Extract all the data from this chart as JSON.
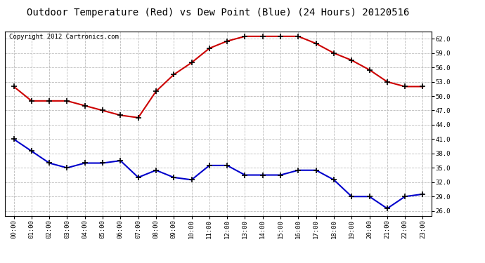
{
  "title": "Outdoor Temperature (Red) vs Dew Point (Blue) (24 Hours) 20120516",
  "copyright": "Copyright 2012 Cartronics.com",
  "hours": [
    "00:00",
    "01:00",
    "02:00",
    "03:00",
    "04:00",
    "05:00",
    "06:00",
    "07:00",
    "08:00",
    "09:00",
    "10:00",
    "11:00",
    "12:00",
    "13:00",
    "14:00",
    "15:00",
    "16:00",
    "17:00",
    "18:00",
    "19:00",
    "20:00",
    "21:00",
    "22:00",
    "23:00"
  ],
  "temp": [
    52,
    49,
    49,
    49,
    48,
    47,
    46,
    45.5,
    51,
    54.5,
    57,
    60,
    61.5,
    62.5,
    62.5,
    62.5,
    62.5,
    61,
    59,
    57.5,
    55.5,
    53,
    52,
    52
  ],
  "dew": [
    41,
    38.5,
    36,
    35,
    36,
    36,
    36.5,
    33,
    34.5,
    33,
    32.5,
    35.5,
    35.5,
    33.5,
    33.5,
    33.5,
    34.5,
    34.5,
    32.5,
    29,
    29,
    26.5,
    29,
    29.5
  ],
  "temp_color": "#cc0000",
  "dew_color": "#0000cc",
  "bg_color": "#ffffff",
  "plot_bg_color": "#ffffff",
  "grid_color": "#bbbbbb",
  "ylim": [
    25.0,
    63.5
  ],
  "yticks": [
    26.0,
    29.0,
    32.0,
    35.0,
    38.0,
    41.0,
    44.0,
    47.0,
    50.0,
    53.0,
    56.0,
    59.0,
    62.0
  ],
  "title_fontsize": 10,
  "copyright_fontsize": 6.5,
  "tick_fontsize": 6.5,
  "marker": "+",
  "markersize": 6,
  "markeredgewidth": 1.2,
  "linewidth": 1.5
}
